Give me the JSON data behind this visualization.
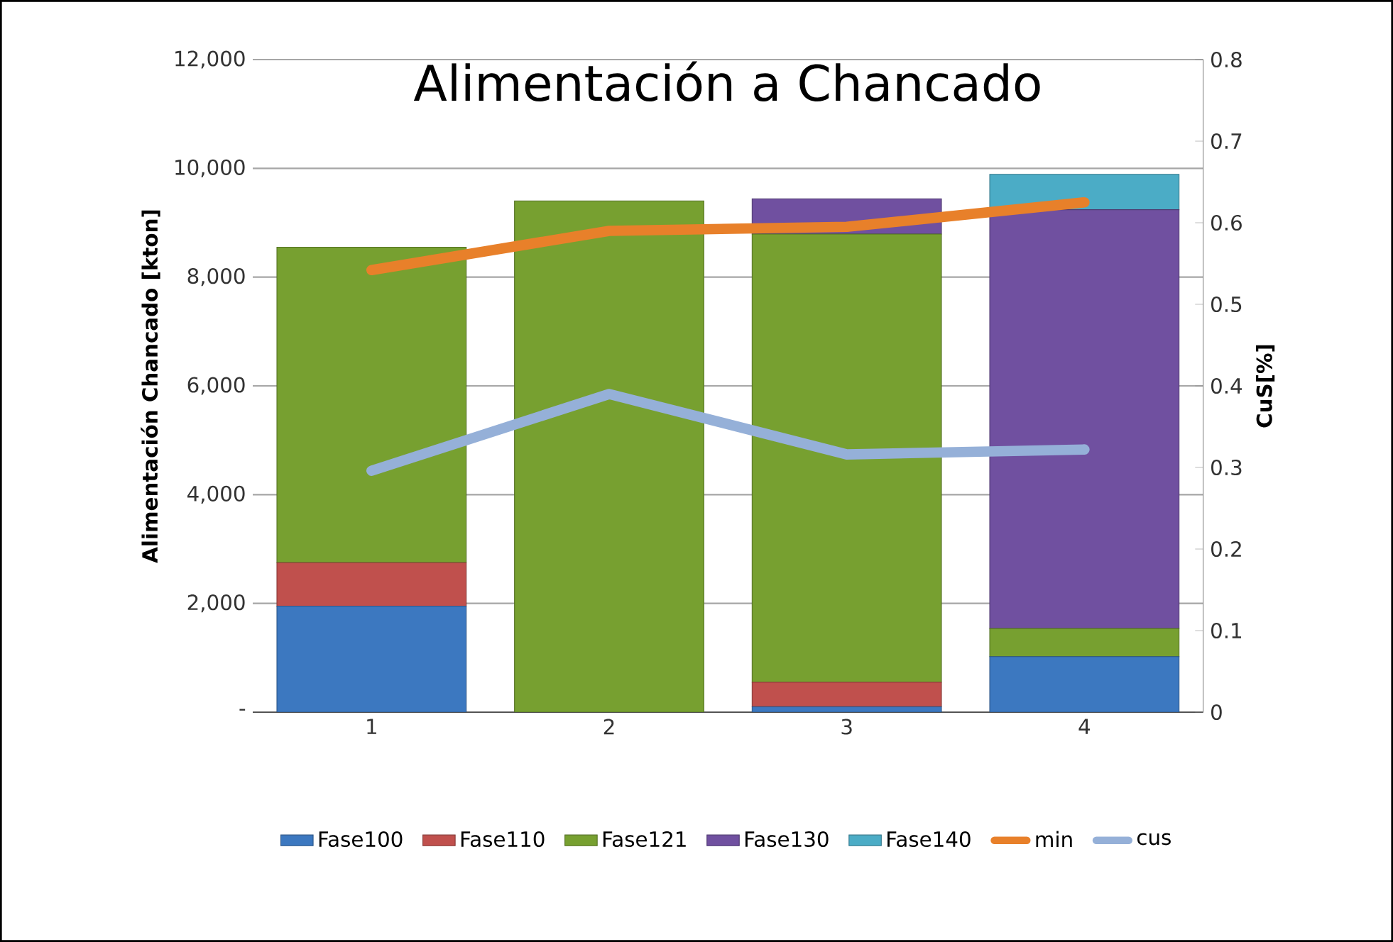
{
  "chart_data": {
    "type": "bar",
    "stacked": true,
    "title": "Alimentación a Chancado",
    "ylabel": "Alimentación Chancado  [kton]",
    "y2label": "CuS[%]",
    "categories": [
      "1",
      "2",
      "3",
      "4"
    ],
    "series": [
      {
        "name": "Fase100",
        "color": "#3c78c0",
        "values": [
          1950,
          0,
          100,
          1020
        ]
      },
      {
        "name": "Fase110",
        "color": "#c0504d",
        "values": [
          800,
          0,
          450,
          0
        ]
      },
      {
        "name": "Fase121",
        "color": "#77a030",
        "values": [
          5800,
          9400,
          8240,
          520
        ]
      },
      {
        "name": "Fase130",
        "color": "#7050a0",
        "values": [
          0,
          0,
          650,
          7700
        ]
      },
      {
        "name": "Fase140",
        "color": "#4bacc6",
        "values": [
          0,
          0,
          0,
          650
        ]
      },
      {
        "name": "min",
        "type": "line",
        "axis": "y2",
        "color": "#e8802a",
        "values": [
          0.542,
          0.59,
          0.595,
          0.625
        ]
      },
      {
        "name": "cus",
        "type": "line",
        "axis": "y2",
        "color": "#95b0d8",
        "values": [
          0.296,
          0.39,
          0.316,
          0.322
        ]
      }
    ],
    "ylim": [
      0,
      12000
    ],
    "yticks": [
      {
        "value": 0,
        "label": "-"
      },
      {
        "value": 2000,
        "label": "2,000"
      },
      {
        "value": 4000,
        "label": "4,000"
      },
      {
        "value": 6000,
        "label": "6,000"
      },
      {
        "value": 8000,
        "label": "8,000"
      },
      {
        "value": 10000,
        "label": "10,000"
      },
      {
        "value": 12000,
        "label": "12,000"
      }
    ],
    "y2lim": [
      0,
      0.8
    ],
    "y2ticks": [
      0,
      0.1,
      0.2,
      0.3,
      0.4,
      0.5,
      0.6,
      0.7,
      0.8
    ],
    "grid": "y",
    "legend": "bottom",
    "marker": "none",
    "line_style": "solid"
  }
}
